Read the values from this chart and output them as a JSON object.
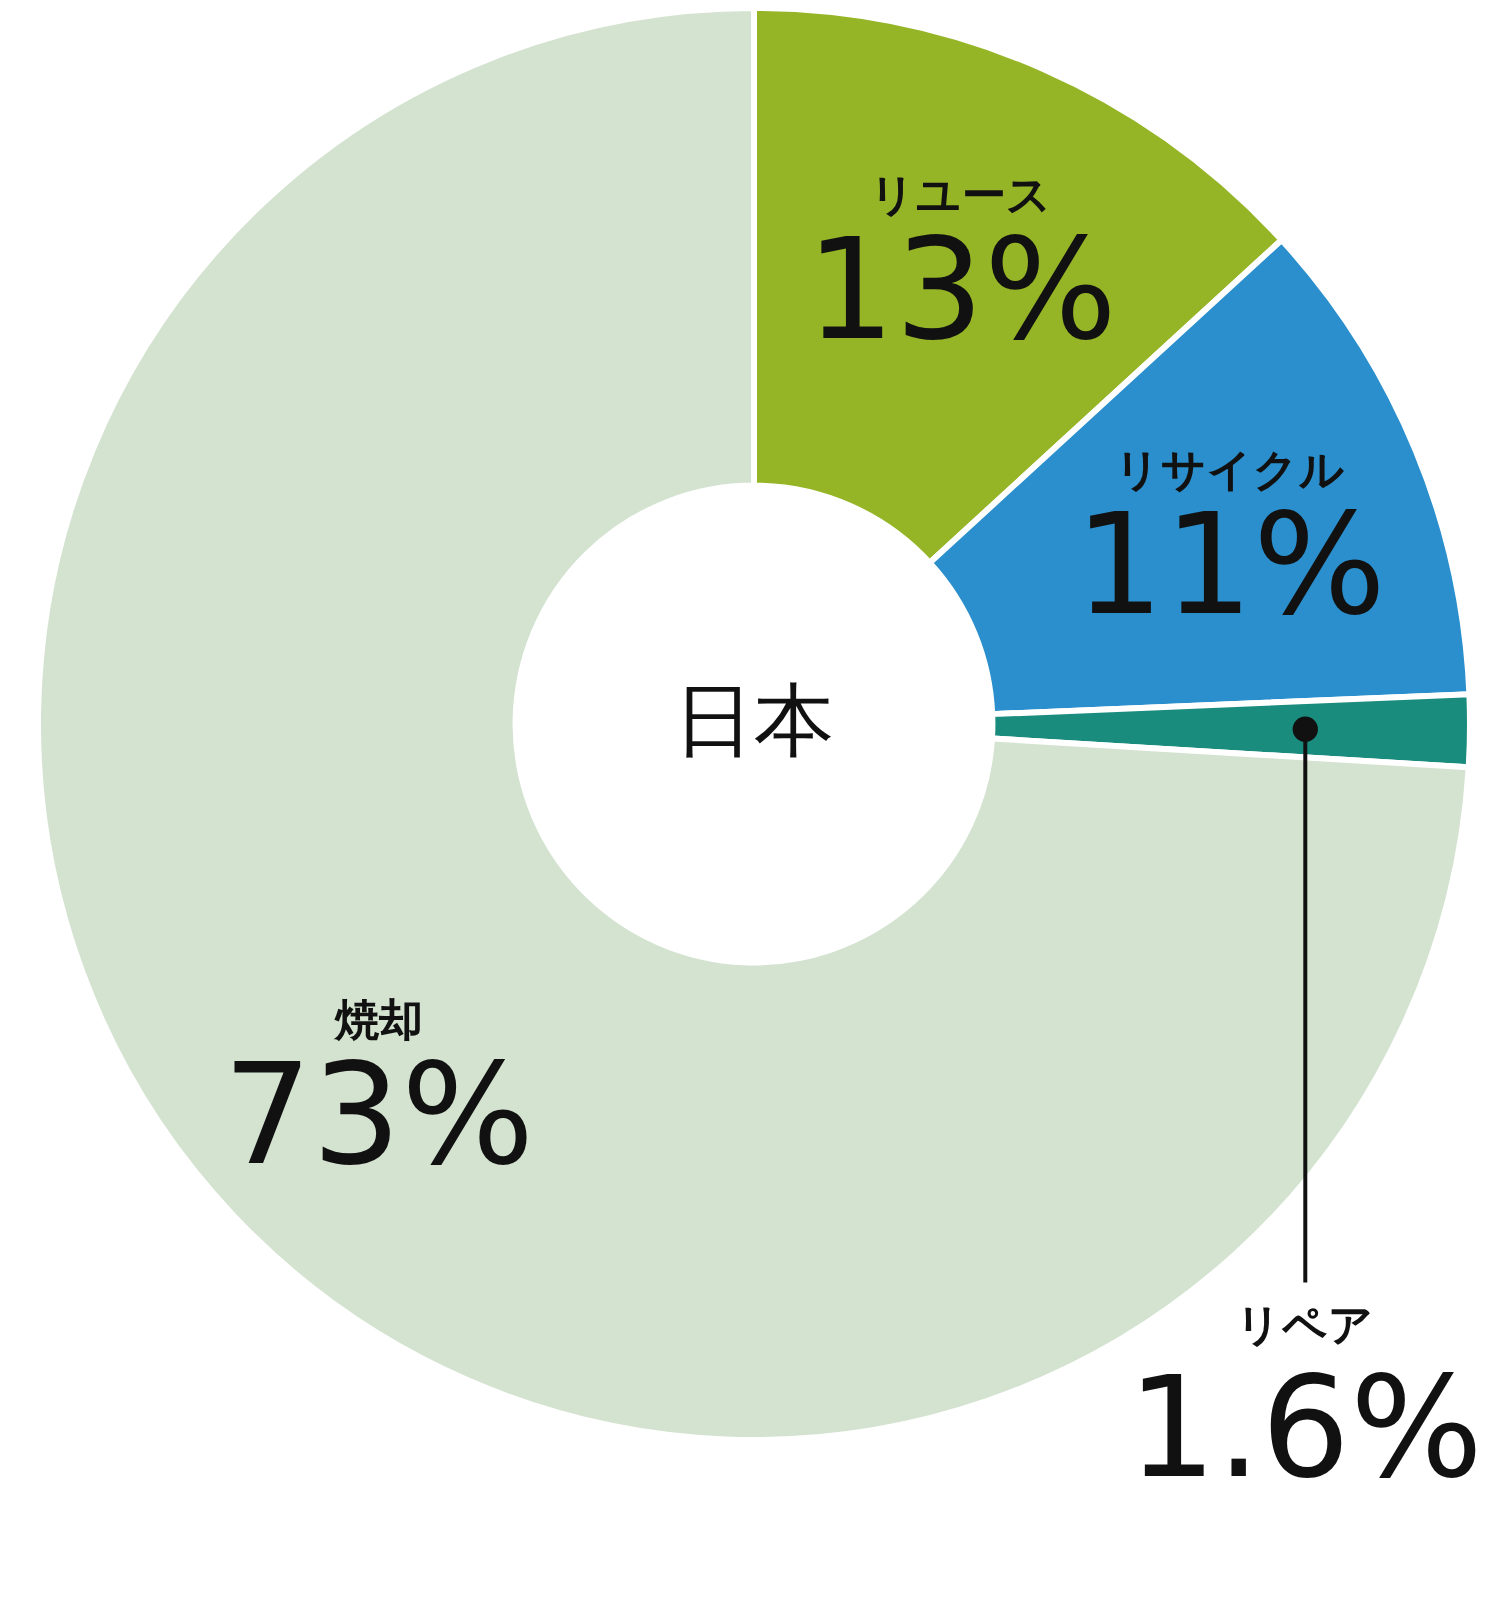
{
  "chart_data": {
    "type": "donut",
    "title": "日本",
    "categories": [
      "リユース",
      "リサイクル",
      "リペア",
      "焼却"
    ],
    "values": [
      13,
      11,
      1.6,
      73
    ],
    "value_labels": [
      "13%",
      "11%",
      "1.6%",
      "73%"
    ],
    "colors": [
      "#95b526",
      "#2a8fcc",
      "#1a8c7e",
      "#d3e3d0"
    ]
  }
}
